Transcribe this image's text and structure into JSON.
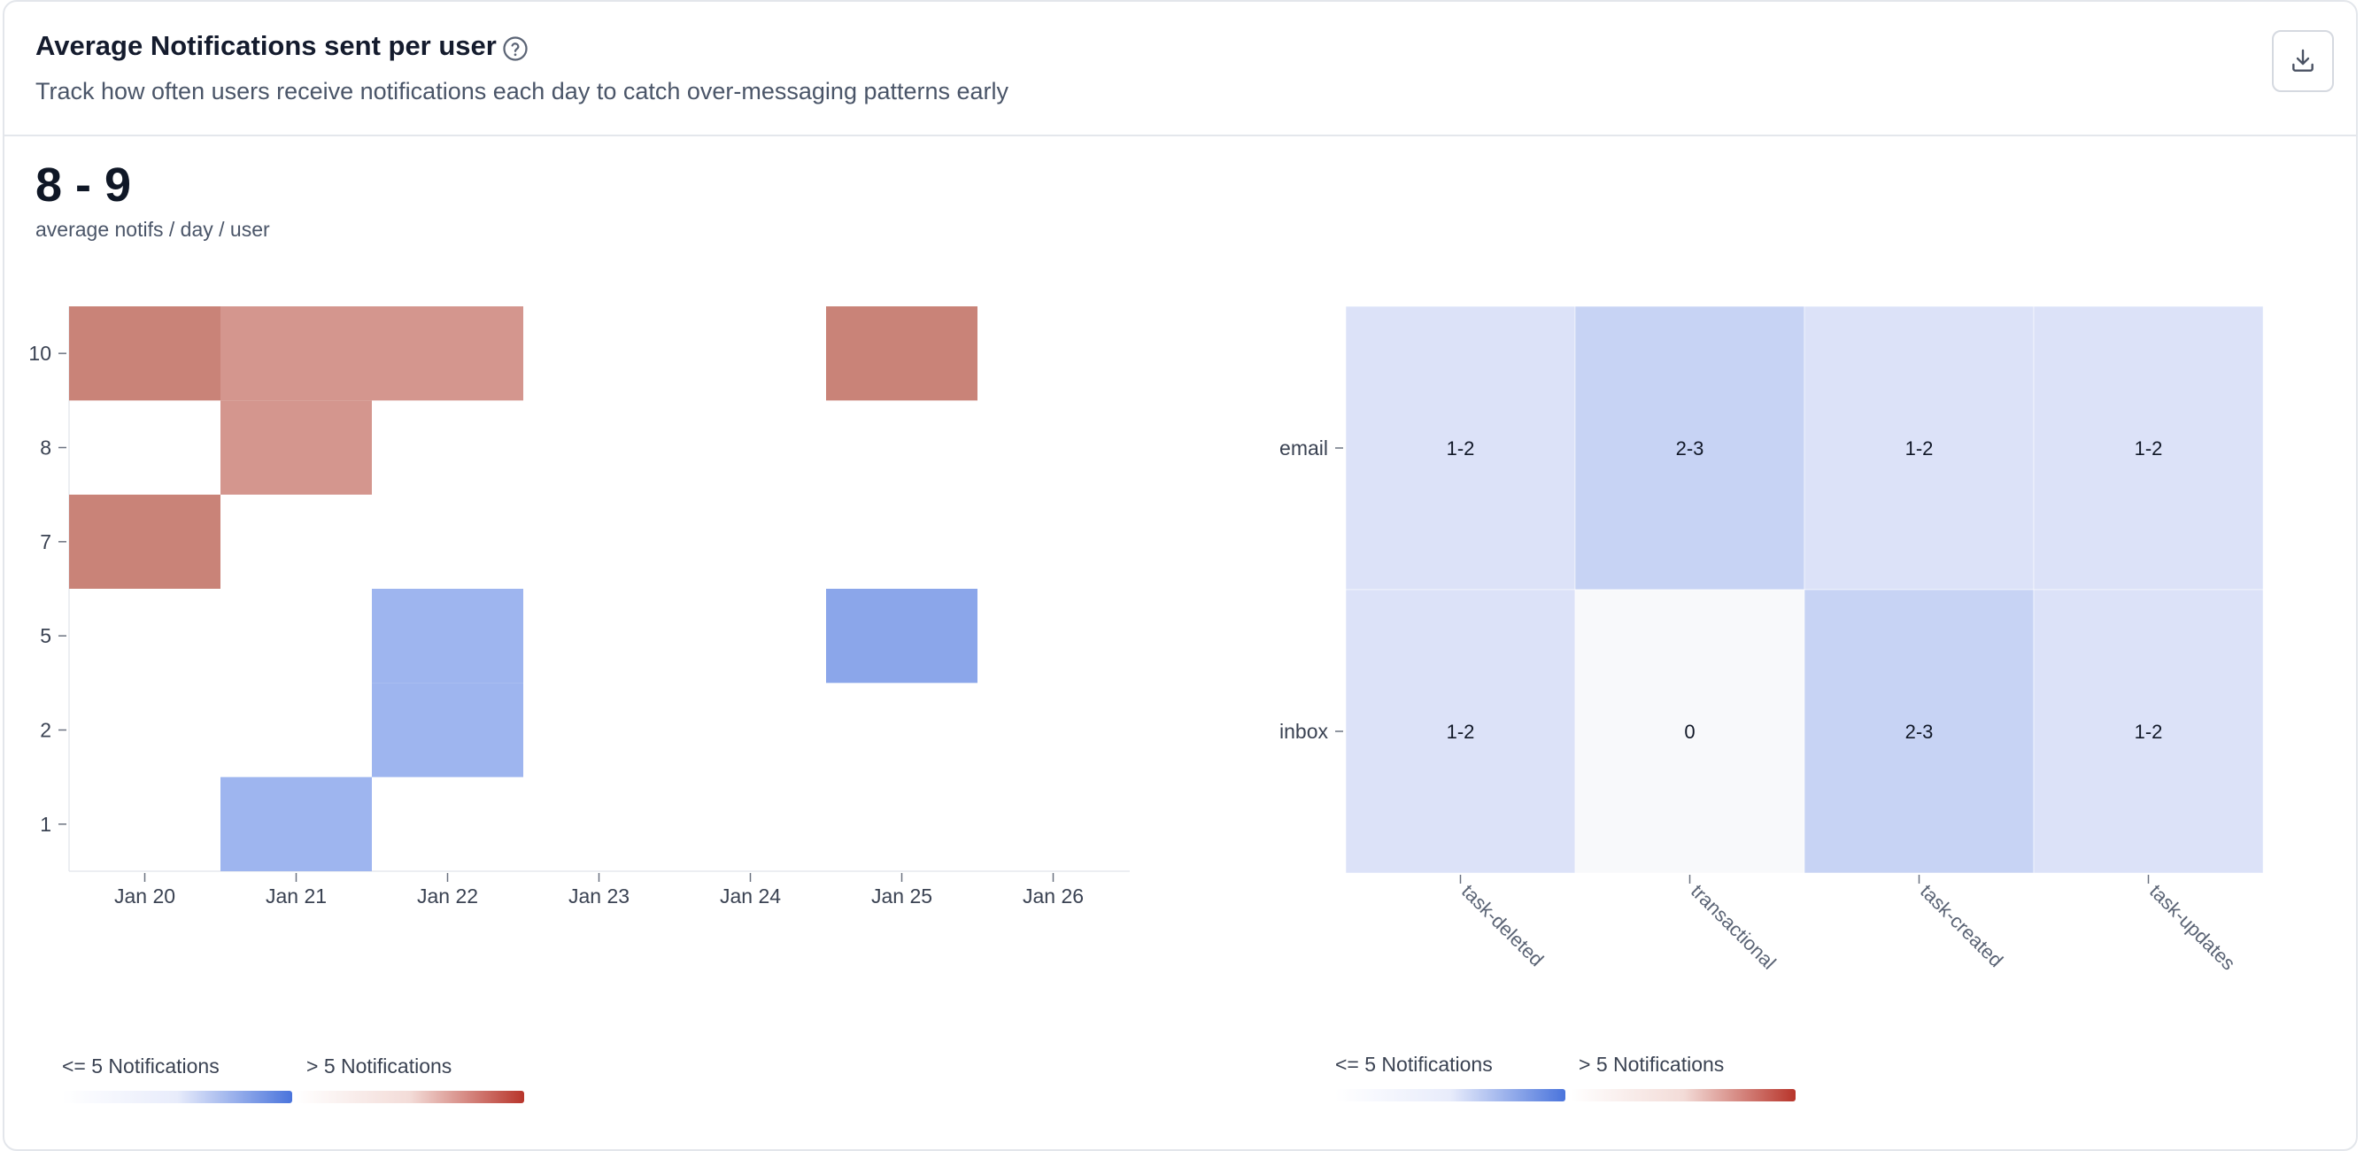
{
  "header": {
    "title": "Average Notifications sent per user",
    "subtitle": "Track how often users receive notifications each day to catch over-messaging patterns early",
    "help_icon": "question-circle-icon",
    "download_icon": "download-icon"
  },
  "metric": {
    "value": "8 - 9",
    "label": "average notifs / day / user"
  },
  "colors": {
    "low_light": "#e8ecfb",
    "low_dark": "#4a74dc",
    "high_light": "#f3dcd8",
    "high_dark": "#b8352b"
  },
  "legend_left": {
    "low_label": "<= 5 Notifications",
    "high_label": "> 5 Notifications"
  },
  "legend_right": {
    "low_label": "<= 5 Notifications",
    "high_label": "> 5 Notifications"
  },
  "chart_data": [
    {
      "type": "heatmap",
      "title": "",
      "xlabel": "",
      "ylabel": "",
      "x_categories": [
        "Jan 20",
        "Jan 21",
        "Jan 22",
        "Jan 23",
        "Jan 24",
        "Jan 25",
        "Jan 26"
      ],
      "y_categories": [
        "1",
        "2",
        "5",
        "7",
        "8",
        "10"
      ],
      "cells": [
        {
          "x": "Jan 20",
          "y": "10",
          "color": "#c98378"
        },
        {
          "x": "Jan 21",
          "y": "10",
          "color": "#d4968e"
        },
        {
          "x": "Jan 22",
          "y": "10",
          "color": "#d4968e"
        },
        {
          "x": "Jan 25",
          "y": "10",
          "color": "#c98378"
        },
        {
          "x": "Jan 21",
          "y": "8",
          "color": "#d4968e"
        },
        {
          "x": "Jan 20",
          "y": "7",
          "color": "#c98378"
        },
        {
          "x": "Jan 22",
          "y": "5",
          "color": "#9eb5ef"
        },
        {
          "x": "Jan 25",
          "y": "5",
          "color": "#8ba6ea"
        },
        {
          "x": "Jan 22",
          "y": "2",
          "color": "#9eb5ef"
        },
        {
          "x": "Jan 21",
          "y": "1",
          "color": "#9eb5ef"
        }
      ]
    },
    {
      "type": "heatmap",
      "title": "",
      "xlabel": "",
      "ylabel": "",
      "x_categories": [
        "task-deleted",
        "transactional",
        "task-created",
        "task-updates"
      ],
      "y_categories": [
        "email",
        "inbox"
      ],
      "cells": [
        {
          "x": "task-deleted",
          "y": "email",
          "label": "1-2",
          "color": "#dce2f8"
        },
        {
          "x": "transactional",
          "y": "email",
          "label": "2-3",
          "color": "#c7d3f4"
        },
        {
          "x": "task-created",
          "y": "email",
          "label": "1-2",
          "color": "#dce2f8"
        },
        {
          "x": "task-updates",
          "y": "email",
          "label": "1-2",
          "color": "#dce2f8"
        },
        {
          "x": "task-deleted",
          "y": "inbox",
          "label": "1-2",
          "color": "#dce2f8"
        },
        {
          "x": "transactional",
          "y": "inbox",
          "label": "0",
          "color": "#f8f9fb"
        },
        {
          "x": "task-created",
          "y": "inbox",
          "label": "2-3",
          "color": "#c7d3f4"
        },
        {
          "x": "task-updates",
          "y": "inbox",
          "label": "1-2",
          "color": "#dce2f8"
        }
      ]
    }
  ]
}
